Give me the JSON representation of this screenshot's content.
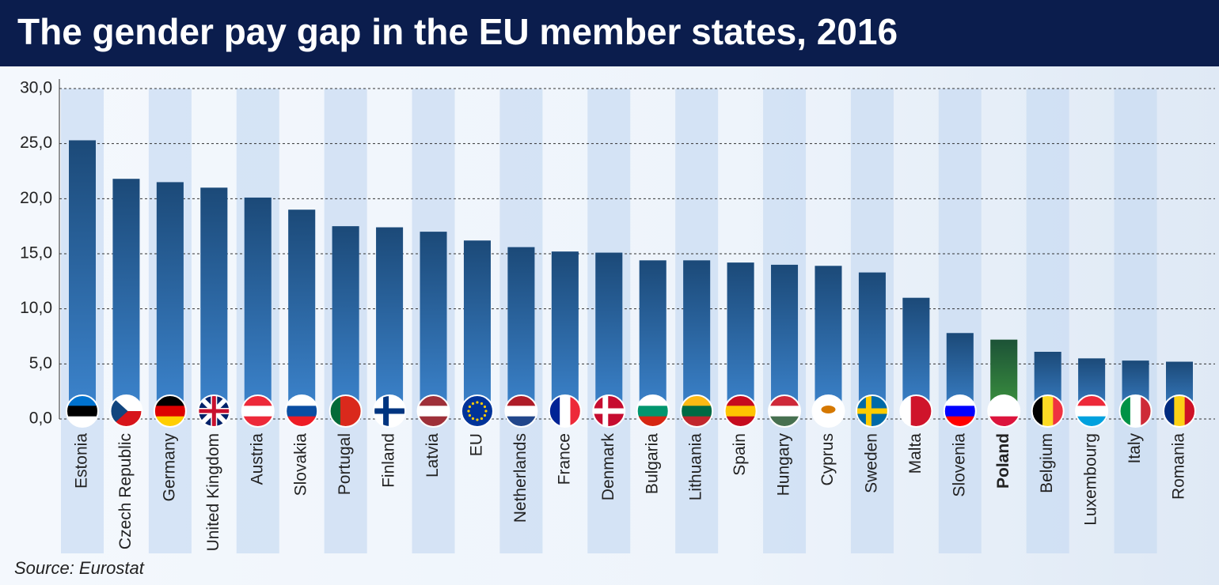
{
  "chart_data": {
    "type": "bar",
    "title": "The gender pay gap in the EU member states, 2016",
    "source": "Source: Eurostat",
    "categories": [
      "Estonia",
      "Czech Republic",
      "Germany",
      "United Kingdom",
      "Austria",
      "Slovakia",
      "Portugal",
      "Finland",
      "Latvia",
      "EU",
      "Netherlands",
      "France",
      "Denmark",
      "Bulgaria",
      "Lithuania",
      "Spain",
      "Hungary",
      "Cyprus",
      "Sweden",
      "Malta",
      "Slovenia",
      "Poland",
      "Belgium",
      "Luxembourg",
      "Italy",
      "Romania"
    ],
    "values": [
      25.3,
      21.8,
      21.5,
      21.0,
      20.1,
      19.0,
      17.5,
      17.4,
      17.0,
      16.2,
      15.6,
      15.2,
      15.1,
      14.4,
      14.4,
      14.2,
      14.0,
      13.9,
      13.3,
      11.0,
      7.8,
      7.2,
      6.1,
      5.5,
      5.3,
      5.2
    ],
    "color": "#3d86d0",
    "highlight": "Poland",
    "highlight_color": "#3f9a3f",
    "ylim": [
      0,
      30
    ],
    "yticks": [
      {
        "value": 0,
        "label": "0,0"
      },
      {
        "value": 5,
        "label": "5,0"
      },
      {
        "value": 10,
        "label": "10,0"
      },
      {
        "value": 15,
        "label": "15,0"
      },
      {
        "value": 20,
        "label": "20,0"
      },
      {
        "value": 25,
        "label": "25,0"
      },
      {
        "value": 30,
        "label": "30,0"
      }
    ],
    "grid": true
  }
}
